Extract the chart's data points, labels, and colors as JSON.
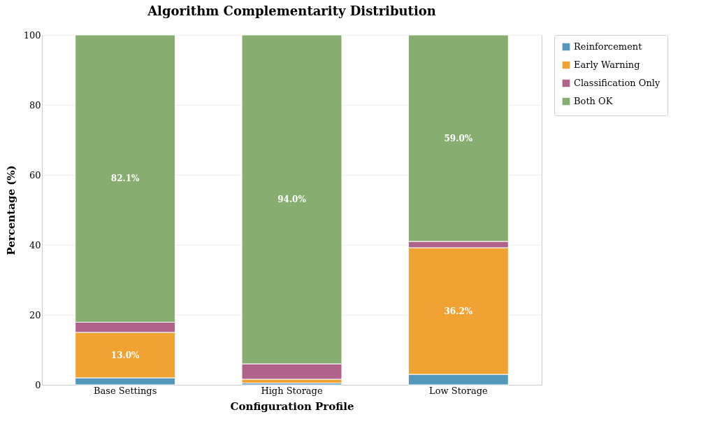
{
  "chart_data": {
    "type": "bar",
    "stacked": true,
    "title": "Algorithm Complementarity Distribution",
    "xlabel": "Configuration Profile",
    "ylabel": "Percentage (%)",
    "categories": [
      "Base Settings",
      "High Storage",
      "Low Storage"
    ],
    "series": [
      {
        "name": "Reinforcement",
        "color": "#5499bb",
        "values": [
          2.0,
          0.5,
          3.0
        ]
      },
      {
        "name": "Early Warning",
        "color": "#f0a233",
        "values": [
          13.0,
          1.1,
          36.2
        ],
        "value_labels": [
          "13.0%",
          null,
          "36.2%"
        ]
      },
      {
        "name": "Classification Only",
        "color": "#b1628b",
        "values": [
          2.9,
          4.4,
          1.8
        ]
      },
      {
        "name": "Both OK",
        "color": "#88ad70",
        "values": [
          82.1,
          94.0,
          59.0
        ],
        "value_labels": [
          "82.1%",
          "94.0%",
          "59.0%"
        ]
      }
    ],
    "ylim": [
      0,
      100
    ],
    "yticks": [
      0,
      20,
      40,
      60,
      80,
      100
    ],
    "grid": "y",
    "legend": "top right"
  }
}
